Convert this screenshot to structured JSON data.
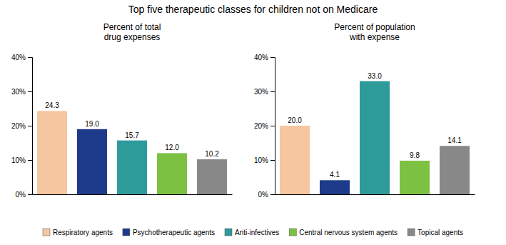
{
  "title": "Top five therapeutic classes for children not on Medicare",
  "chart_data": [
    {
      "type": "bar",
      "subtitle": "Percent of total\ndrug expenses",
      "categories": [
        "Respiratory agents",
        "Psychotherapeutic agents",
        "Anti-infectives",
        "Central nervous system agents",
        "Topical agents"
      ],
      "values": [
        24.3,
        19.0,
        15.7,
        12.0,
        10.2
      ],
      "value_labels": [
        "24.3",
        "19.0",
        "15.7",
        "12.0",
        "10.2"
      ],
      "colors": [
        "#F5C6A0",
        "#1E3A8A",
        "#2E9B9B",
        "#7DC142",
        "#888888"
      ],
      "ylim": [
        0,
        40
      ],
      "yticks": [
        {
          "value": 0,
          "label": "0%"
        },
        {
          "value": 10,
          "label": "10%"
        },
        {
          "value": 20,
          "label": "20%"
        },
        {
          "value": 30,
          "label": "30%"
        },
        {
          "value": 40,
          "label": "40%"
        }
      ],
      "data_labels": true,
      "tick_labels": "y",
      "grid": false,
      "legend": "bottom"
    },
    {
      "type": "bar",
      "subtitle": "Percent of population\nwith expense",
      "categories": [
        "Respiratory agents",
        "Psychotherapeutic agents",
        "Anti-infectives",
        "Central nervous system agents",
        "Topical agents"
      ],
      "values": [
        20.0,
        4.1,
        33.0,
        9.8,
        14.1
      ],
      "value_labels": [
        "20.0",
        "4.1",
        "33.0",
        "9.8",
        "14.1"
      ],
      "colors": [
        "#F5C6A0",
        "#1E3A8A",
        "#2E9B9B",
        "#7DC142",
        "#888888"
      ],
      "ylim": [
        0,
        40
      ],
      "yticks": [
        {
          "value": 0,
          "label": "0%"
        },
        {
          "value": 10,
          "label": "10%"
        },
        {
          "value": 20,
          "label": "20%"
        },
        {
          "value": 30,
          "label": "30%"
        },
        {
          "value": 40,
          "label": "40%"
        }
      ],
      "data_labels": true,
      "tick_labels": "y",
      "grid": false
    }
  ]
}
